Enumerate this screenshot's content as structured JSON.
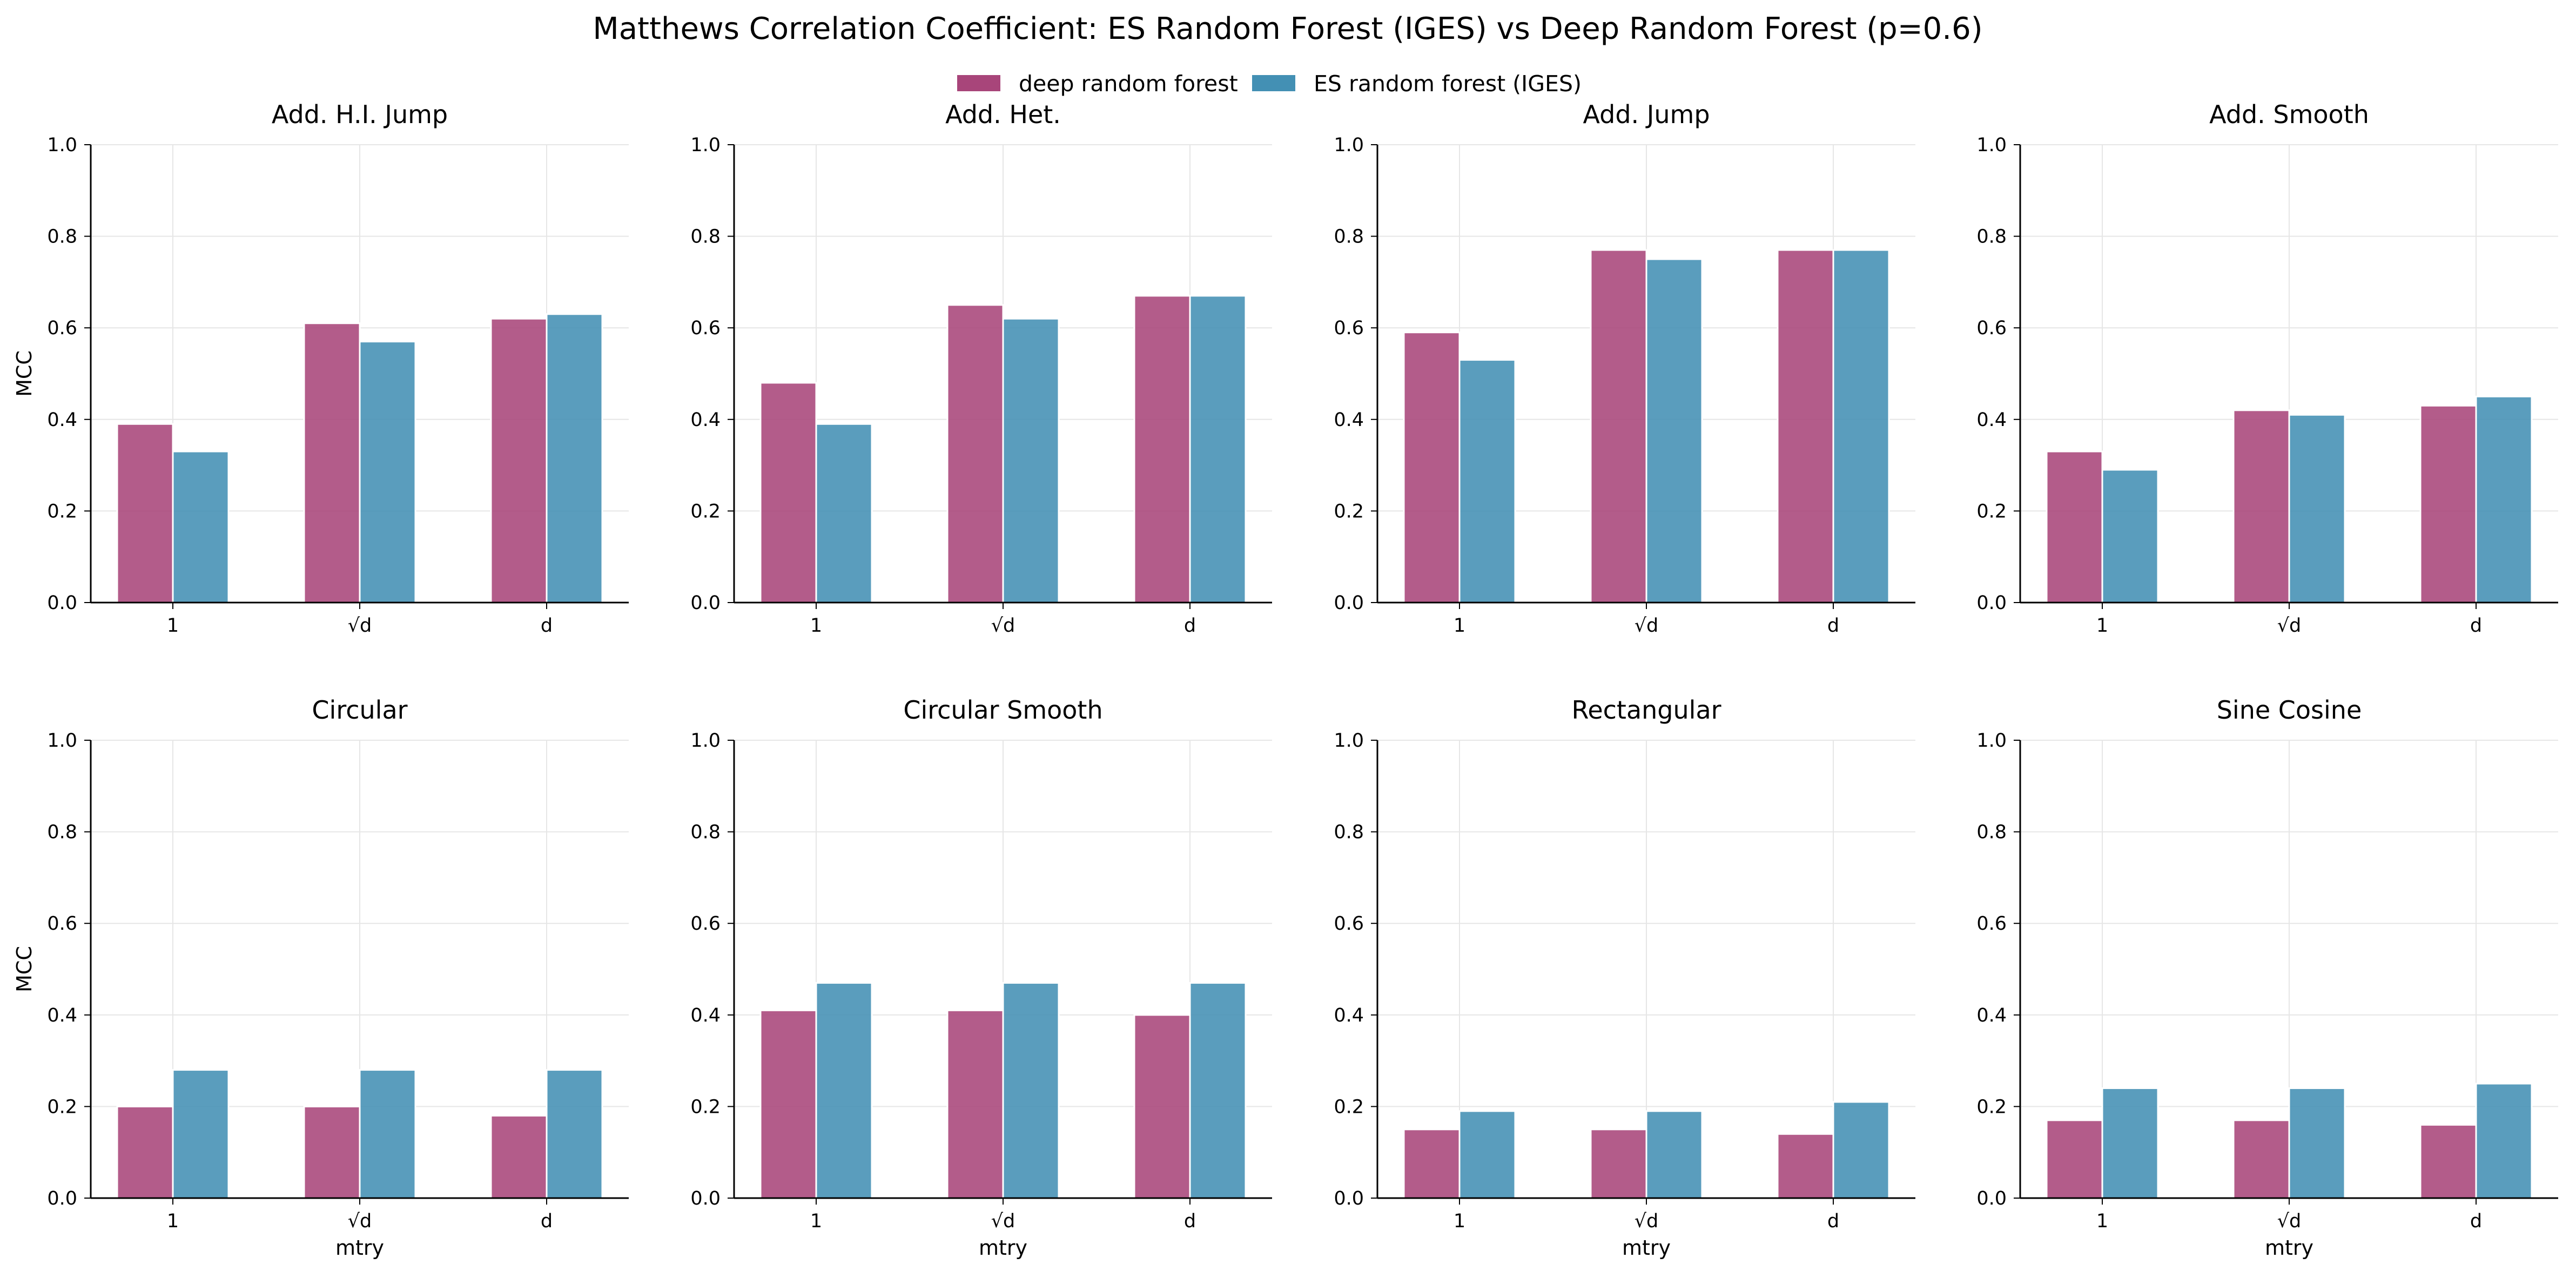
{
  "figure": {
    "title": "Matthews Correlation Coefficient: ES Random Forest (IGES) vs Deep Random Forest (p=0.6)"
  },
  "legend": {
    "placement": "top-center",
    "entries": [
      {
        "label": "deep random forest",
        "color": "#a8457a"
      },
      {
        "label": "ES random forest (IGES)",
        "color": "#4390b4"
      }
    ]
  },
  "style": {
    "grid": true,
    "series_colors": [
      "#a8457a",
      "#4390b4"
    ]
  },
  "chart_data": [
    {
      "type": "bar",
      "title": "Add. H.I. Jump",
      "categories": [
        "1",
        "√d",
        "d"
      ],
      "xlabel": "",
      "ylabel": "MCC",
      "ylim": [
        0,
        1
      ],
      "yticks": [
        "0.0",
        "0.2",
        "0.4",
        "0.6",
        "0.8",
        "1.0"
      ],
      "series": [
        {
          "name": "deep random forest",
          "values": [
            0.39,
            0.61,
            0.62
          ]
        },
        {
          "name": "ES random forest (IGES)",
          "values": [
            0.33,
            0.57,
            0.63
          ]
        }
      ]
    },
    {
      "type": "bar",
      "title": "Add. Het.",
      "categories": [
        "1",
        "√d",
        "d"
      ],
      "xlabel": "",
      "ylabel": "",
      "ylim": [
        0,
        1
      ],
      "yticks": [
        "0.0",
        "0.2",
        "0.4",
        "0.6",
        "0.8",
        "1.0"
      ],
      "series": [
        {
          "name": "deep random forest",
          "values": [
            0.48,
            0.65,
            0.67
          ]
        },
        {
          "name": "ES random forest (IGES)",
          "values": [
            0.39,
            0.62,
            0.67
          ]
        }
      ]
    },
    {
      "type": "bar",
      "title": "Add. Jump",
      "categories": [
        "1",
        "√d",
        "d"
      ],
      "xlabel": "",
      "ylabel": "",
      "ylim": [
        0,
        1
      ],
      "yticks": [
        "0.0",
        "0.2",
        "0.4",
        "0.6",
        "0.8",
        "1.0"
      ],
      "series": [
        {
          "name": "deep random forest",
          "values": [
            0.59,
            0.77,
            0.77
          ]
        },
        {
          "name": "ES random forest (IGES)",
          "values": [
            0.53,
            0.75,
            0.77
          ]
        }
      ]
    },
    {
      "type": "bar",
      "title": "Add. Smooth",
      "categories": [
        "1",
        "√d",
        "d"
      ],
      "xlabel": "",
      "ylabel": "",
      "ylim": [
        0,
        1
      ],
      "yticks": [
        "0.0",
        "0.2",
        "0.4",
        "0.6",
        "0.8",
        "1.0"
      ],
      "series": [
        {
          "name": "deep random forest",
          "values": [
            0.33,
            0.42,
            0.43
          ]
        },
        {
          "name": "ES random forest (IGES)",
          "values": [
            0.29,
            0.41,
            0.45
          ]
        }
      ]
    },
    {
      "type": "bar",
      "title": "Circular",
      "categories": [
        "1",
        "√d",
        "d"
      ],
      "xlabel": "mtry",
      "ylabel": "MCC",
      "ylim": [
        0,
        1
      ],
      "yticks": [
        "0.0",
        "0.2",
        "0.4",
        "0.6",
        "0.8",
        "1.0"
      ],
      "series": [
        {
          "name": "deep random forest",
          "values": [
            0.2,
            0.2,
            0.18
          ]
        },
        {
          "name": "ES random forest (IGES)",
          "values": [
            0.28,
            0.28,
            0.28
          ]
        }
      ]
    },
    {
      "type": "bar",
      "title": "Circular Smooth",
      "categories": [
        "1",
        "√d",
        "d"
      ],
      "xlabel": "mtry",
      "ylabel": "",
      "ylim": [
        0,
        1
      ],
      "yticks": [
        "0.0",
        "0.2",
        "0.4",
        "0.6",
        "0.8",
        "1.0"
      ],
      "series": [
        {
          "name": "deep random forest",
          "values": [
            0.41,
            0.41,
            0.4
          ]
        },
        {
          "name": "ES random forest (IGES)",
          "values": [
            0.47,
            0.47,
            0.47
          ]
        }
      ]
    },
    {
      "type": "bar",
      "title": "Rectangular",
      "categories": [
        "1",
        "√d",
        "d"
      ],
      "xlabel": "mtry",
      "ylabel": "",
      "ylim": [
        0,
        1
      ],
      "yticks": [
        "0.0",
        "0.2",
        "0.4",
        "0.6",
        "0.8",
        "1.0"
      ],
      "series": [
        {
          "name": "deep random forest",
          "values": [
            0.15,
            0.15,
            0.14
          ]
        },
        {
          "name": "ES random forest (IGES)",
          "values": [
            0.19,
            0.19,
            0.21
          ]
        }
      ]
    },
    {
      "type": "bar",
      "title": "Sine Cosine",
      "categories": [
        "1",
        "√d",
        "d"
      ],
      "xlabel": "mtry",
      "ylabel": "",
      "ylim": [
        0,
        1
      ],
      "yticks": [
        "0.0",
        "0.2",
        "0.4",
        "0.6",
        "0.8",
        "1.0"
      ],
      "series": [
        {
          "name": "deep random forest",
          "values": [
            0.17,
            0.17,
            0.16
          ]
        },
        {
          "name": "ES random forest (IGES)",
          "values": [
            0.24,
            0.24,
            0.25
          ]
        }
      ]
    }
  ]
}
